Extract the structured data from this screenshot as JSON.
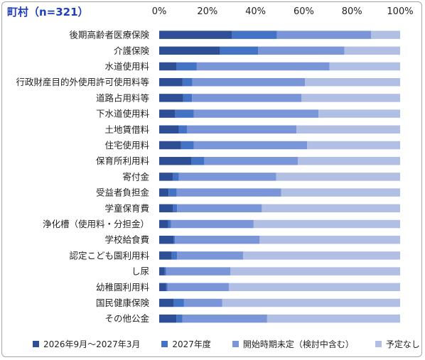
{
  "title": "町村（n=321）",
  "chart_data": {
    "type": "bar",
    "orientation": "horizontal",
    "stacked": true,
    "xlim": [
      0,
      100
    ],
    "xticks": [
      "0%",
      "20%",
      "40%",
      "60%",
      "80%",
      "100%"
    ],
    "grid": false,
    "legend_position": "bottom",
    "categories": [
      "後期高齢者医療保険",
      "介護保険",
      "水道使用料",
      "行政財産目的外使用許可使用料等",
      "道路占用料等",
      "下水道使用料",
      "土地賃借料",
      "住宅使用料",
      "保育所利用料",
      "寄付金",
      "受益者負担金",
      "学童保育費",
      "浄化槽（使用料・分担金）",
      "学校給食費",
      "認定こども園利用料",
      "し尿",
      "幼稚園利用料",
      "国民健康保険",
      "その他公金"
    ],
    "series": [
      {
        "name": "2026年9月～2027年3月",
        "color": "#2e4f96",
        "values": [
          30.2,
          25.2,
          7.2,
          9.7,
          9.9,
          6.6,
          8.1,
          9.1,
          13.4,
          5.6,
          3.9,
          5.8,
          3.7,
          5.9,
          5.2,
          2.2,
          2.8,
          5.9,
          7.1
        ]
      },
      {
        "name": "2027年度",
        "color": "#4472c4",
        "values": [
          18.6,
          15.9,
          8.4,
          4.1,
          3.7,
          7.8,
          3.4,
          5.3,
          5.3,
          2.5,
          3.4,
          1.6,
          1.2,
          0.6,
          2.2,
          0.6,
          0.6,
          4.4,
          2.5
        ]
      },
      {
        "name": "開始時期未定（検討中含む）",
        "color": "#7b96d8",
        "values": [
          39.2,
          35.8,
          55.1,
          46.7,
          45.5,
          51.7,
          45.5,
          47.0,
          38.9,
          40.5,
          43.3,
          35.2,
          34.3,
          35.2,
          27.4,
          26.8,
          25.5,
          15.9,
          35.2
        ]
      },
      {
        "name": "予定なし",
        "color": "#b1bfe4",
        "values": [
          12.0,
          23.1,
          29.3,
          39.5,
          40.9,
          33.9,
          43.0,
          38.6,
          42.4,
          51.4,
          49.4,
          57.4,
          60.8,
          58.3,
          65.2,
          70.4,
          71.1,
          73.8,
          55.2
        ]
      }
    ]
  }
}
